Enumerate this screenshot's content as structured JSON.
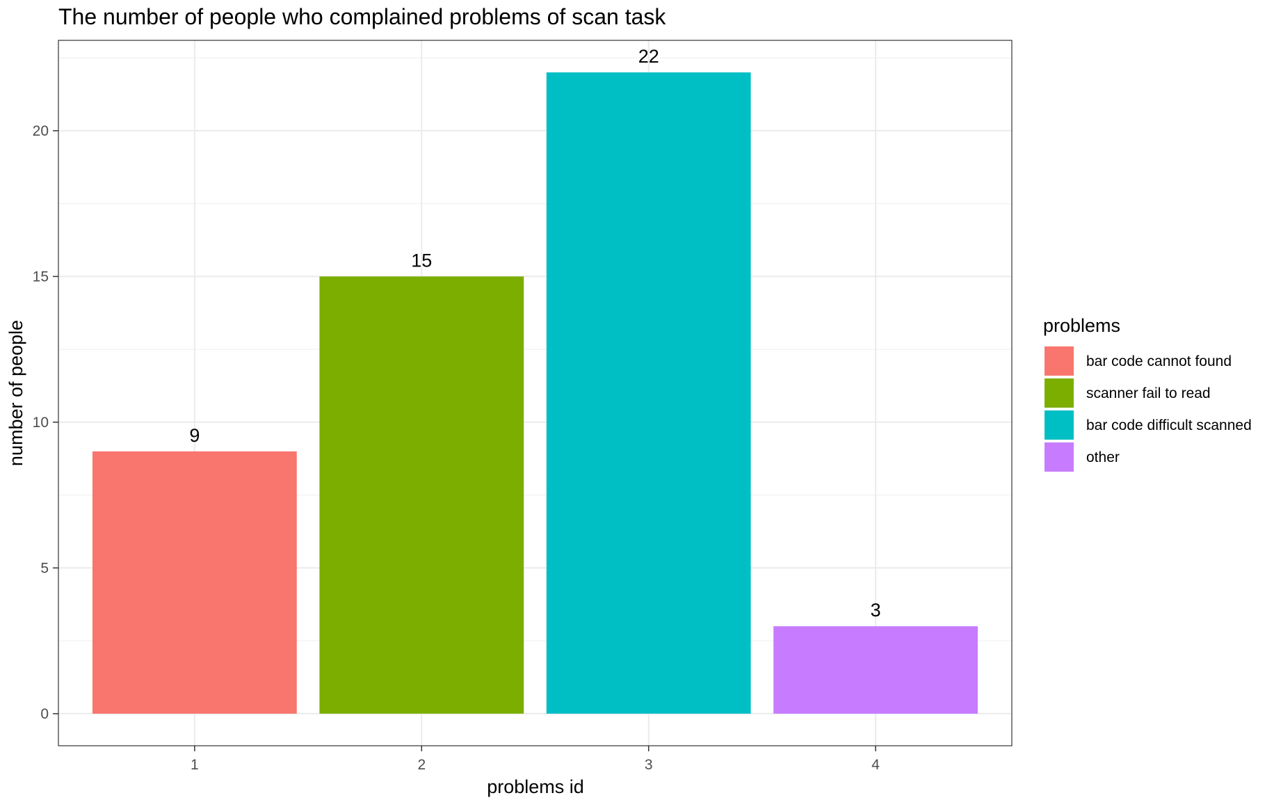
{
  "chart_data": {
    "type": "bar",
    "title": "The number of people who complained problems of scan task",
    "xlabel": "problems id",
    "ylabel": "number of people",
    "categories": [
      "1",
      "2",
      "3",
      "4"
    ],
    "values": [
      9,
      15,
      22,
      3
    ],
    "data_labels": [
      "9",
      "15",
      "22",
      "3"
    ],
    "fill_by": [
      "bar code cannot found",
      "scanner fail to read",
      "bar code difficult scanned",
      "other"
    ],
    "colors": [
      "#F8766D",
      "#7CAE00",
      "#00BFC4",
      "#C77CFF"
    ],
    "ylim": [
      -1.1,
      23.1
    ],
    "yticks": [
      0,
      5,
      10,
      15,
      20
    ],
    "ytick_labels": [
      "0",
      "5",
      "10",
      "15",
      "20"
    ],
    "grid": true,
    "legend": {
      "title": "problems",
      "position": "right",
      "items": [
        "bar code cannot found",
        "scanner fail to read",
        "bar code difficult scanned",
        "other"
      ]
    }
  }
}
